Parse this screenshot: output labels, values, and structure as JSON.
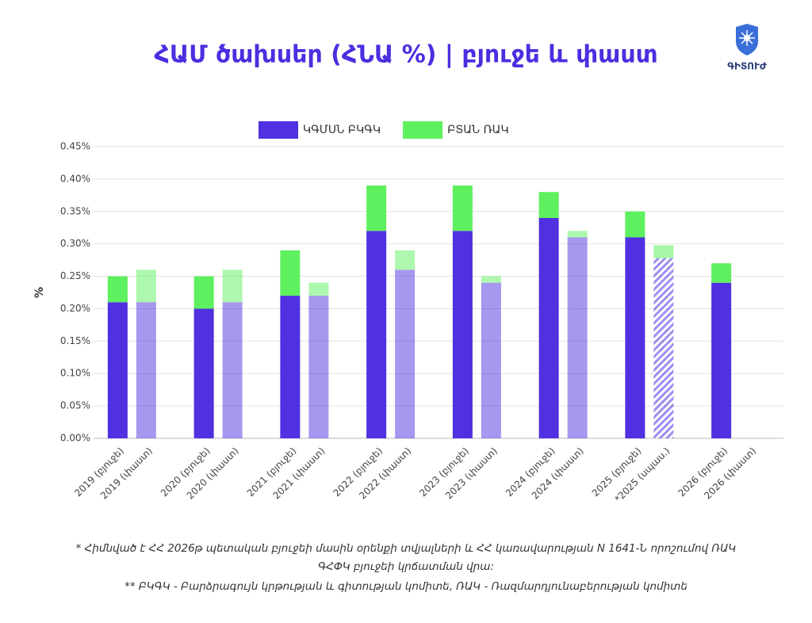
{
  "chart_data": {
    "type": "stacked-bar",
    "title": "ՀԱՄ ծախսեր (ՀՆԱ %) | բյուջե և փաստ",
    "logo": "ԳԻՏՈՒԺ",
    "y_label": "%",
    "categories": [
      "2019 (բյուջե)",
      "2019 (փաստ)",
      "2020 (բյուջե)",
      "2020 (փաստ)",
      "2021 (բյուջե)",
      "2021 (փաստ)",
      "2022 (բյուջե)",
      "2022 (փաստ)",
      "2023 (բյուջե)",
      "2023 (փաստ)",
      "2024 (բյուջե)",
      "2024 (փաստ)",
      "2025 (բյուջե)",
      "*2025 (սպաս.)",
      "2026 (բյուջե)",
      "2026 (փաստ)"
    ],
    "series": [
      {
        "name": "ԿԳՄՍՆ ԲԿԳԿ",
        "color": "#5030e0",
        "values": [
          0.21,
          0.21,
          0.2,
          0.21,
          0.22,
          0.22,
          0.32,
          0.26,
          0.32,
          0.24,
          0.34,
          0.31,
          0.31,
          0.278,
          0.24,
          null
        ]
      },
      {
        "name": "ԲՏԱՆ ՌԱԿ",
        "color": "#5ef05e",
        "values": [
          0.04,
          0.05,
          0.05,
          0.05,
          0.07,
          0.02,
          0.07,
          0.03,
          0.07,
          0.01,
          0.04,
          0.01,
          0.04,
          0.02,
          0.03,
          null
        ]
      }
    ],
    "ylim": [
      0,
      0.45
    ],
    "yticks": [
      {
        "value": 0,
        "label": "0.00%"
      },
      {
        "value": 0.05,
        "label": "0.05%"
      },
      {
        "value": 0.1,
        "label": "0.10%"
      },
      {
        "value": 0.15,
        "label": "0.15%"
      },
      {
        "value": 0.2,
        "label": "0.20%"
      },
      {
        "value": 0.25,
        "label": "0.25%"
      },
      {
        "value": 0.3,
        "label": "0.30%"
      },
      {
        "value": 0.35,
        "label": "0.35%"
      },
      {
        "value": 0.4,
        "label": "0.40%"
      },
      {
        "value": 0.45,
        "label": "0.45%"
      }
    ],
    "grid": true,
    "legend": "top",
    "notes": [
      "* Հիմնված է ՀՀ 2026թ պետական բյուջեի մասին օրենքի տվյալների և ՀՀ կառավարության N 1641-Ն որոշումով ՌԱԿ",
      "ԳՀՓԿ բյուջեի կրճատման վրա:",
      "** ԲԿԳԿ - Բարձրագույն կրթության և գիտության կոմիտե, ՌԱԿ - Ռազմարդյունաբերության կոմիտե"
    ]
  }
}
